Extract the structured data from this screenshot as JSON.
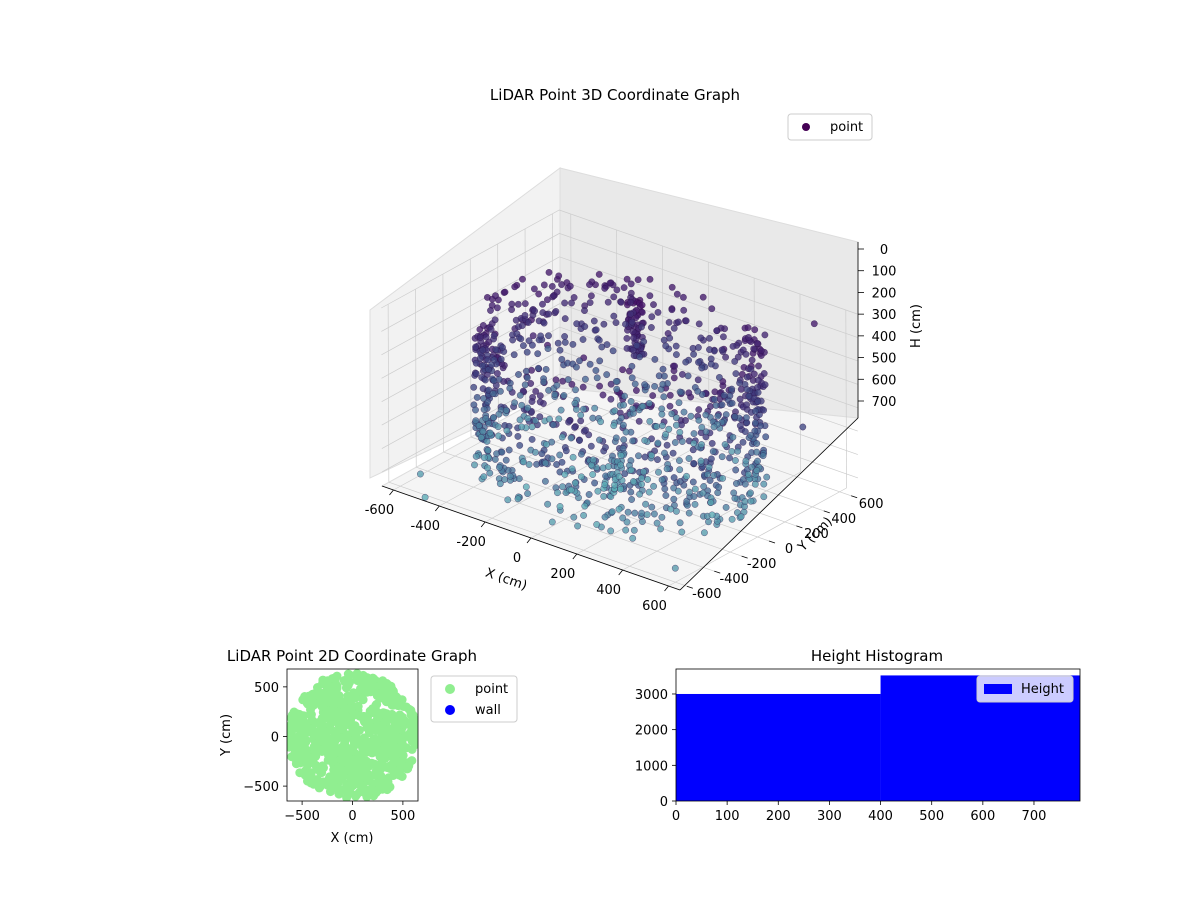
{
  "chart_data": [
    {
      "type": "scatter",
      "subtype": "3d",
      "title": "LiDAR Point 3D Coordinate Graph",
      "xlabel": "X (cm)",
      "ylabel": "Y (cm)",
      "zlabel": "H (cm)",
      "xlim": [
        -650,
        650
      ],
      "ylim": [
        -650,
        650
      ],
      "zlim": [
        0,
        760
      ],
      "z_inverted": true,
      "xticks": [
        -600,
        -400,
        -200,
        0,
        200,
        400,
        600
      ],
      "yticks": [
        -600,
        -400,
        -200,
        0,
        200,
        400,
        600
      ],
      "zticks": [
        0,
        100,
        200,
        300,
        400,
        500,
        600,
        700
      ],
      "grid": true,
      "legend": {
        "placement": "top-right",
        "entries": [
          "point"
        ]
      },
      "colormap": "viridis",
      "series": [
        {
          "name": "point",
          "color": "#440154",
          "description_of_shape": "roughly circular room wall ring of radius ~520 cm spanning heights 0-720 cm, a ceiling fixture near (-50, 200) and scattered outliers",
          "ring": {
            "radius": 520,
            "h_min": 80,
            "h_max": 720
          },
          "points_sample": [
            {
              "x": -560,
              "y": -520,
              "h": 720
            },
            {
              "x": -600,
              "y": 480,
              "h": 520
            },
            {
              "x": 620,
              "y": 300,
              "h": 380
            },
            {
              "x": 640,
              "y": -160,
              "h": 420
            },
            {
              "x": -40,
              "y": 200,
              "h": 40
            },
            {
              "x": -60,
              "y": 220,
              "h": 120
            },
            {
              "x": -20,
              "y": 180,
              "h": 250
            },
            {
              "x": 300,
              "y": 560,
              "h": 180
            },
            {
              "x": -300,
              "y": 420,
              "h": 200
            },
            {
              "x": -480,
              "y": -620,
              "h": 760
            },
            {
              "x": 480,
              "y": 620,
              "h": 90
            },
            {
              "x": 600,
              "y": -600,
              "h": 700
            }
          ]
        }
      ]
    },
    {
      "type": "scatter",
      "title": "LiDAR Point 2D Coordinate Graph",
      "xlabel": "X (cm)",
      "ylabel": "Y (cm)",
      "xlim": [
        -650,
        650
      ],
      "ylim": [
        -650,
        680
      ],
      "xticks": [
        -500,
        0,
        500
      ],
      "yticks": [
        -500,
        0,
        500
      ],
      "legend": {
        "placement": "outside-right",
        "entries": [
          "point",
          "wall"
        ]
      },
      "series": [
        {
          "name": "point",
          "color": "#90ee90",
          "description_of_shape": "dense filled disk of radius ~640 cm centered at origin"
        },
        {
          "name": "wall",
          "color": "#0000ff",
          "points": []
        }
      ]
    },
    {
      "type": "bar",
      "subtype": "histogram",
      "title": "Height Histogram",
      "xlim": [
        0,
        790
      ],
      "ylim": [
        0,
        3700
      ],
      "xticks": [
        0,
        100,
        200,
        300,
        400,
        500,
        600,
        700
      ],
      "yticks": [
        0,
        1000,
        2000,
        3000
      ],
      "legend": {
        "placement": "top-right",
        "entries": [
          "Height"
        ]
      },
      "series": [
        {
          "name": "Height",
          "color": "#0000ff",
          "bins": [
            {
              "from": 0,
              "to": 400,
              "count": 3000
            },
            {
              "from": 400,
              "to": 790,
              "count": 3520
            }
          ]
        }
      ]
    }
  ]
}
